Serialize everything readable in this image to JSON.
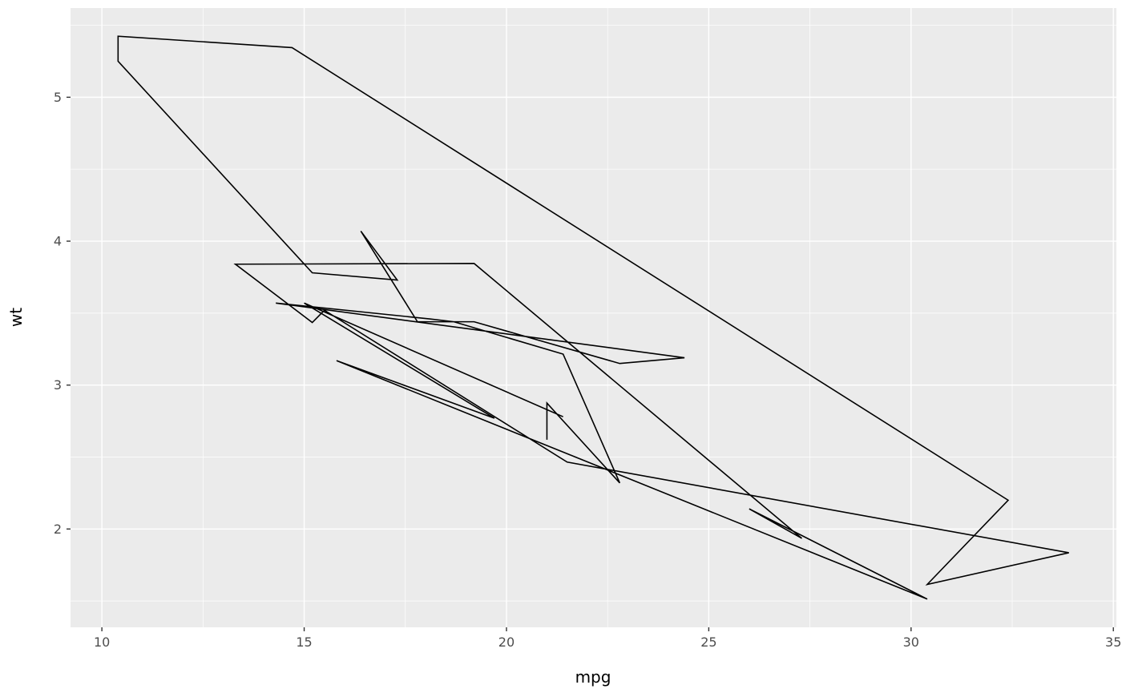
{
  "chart_data": {
    "type": "line",
    "title": "",
    "xlabel": "mpg",
    "ylabel": "wt",
    "x": [
      21.0,
      21.0,
      22.8,
      21.4,
      18.7,
      18.1,
      14.3,
      24.4,
      22.8,
      19.2,
      17.8,
      16.4,
      17.3,
      15.2,
      10.4,
      10.4,
      14.7,
      32.4,
      30.4,
      33.9,
      21.5,
      15.5,
      15.2,
      13.3,
      19.2,
      27.3,
      26.0,
      30.4,
      15.8,
      19.7,
      15.0,
      21.4
    ],
    "y": [
      2.62,
      2.875,
      2.32,
      3.215,
      3.44,
      3.46,
      3.57,
      3.19,
      3.15,
      3.44,
      3.44,
      4.07,
      3.73,
      3.78,
      5.25,
      5.424,
      5.345,
      2.2,
      1.615,
      1.835,
      2.465,
      3.52,
      3.435,
      3.84,
      3.845,
      1.935,
      2.14,
      1.513,
      3.17,
      2.77,
      3.57,
      2.78
    ],
    "xlim": [
      9.225,
      35.075
    ],
    "ylim": [
      1.317,
      5.62
    ],
    "x_major_ticks": [
      10,
      15,
      20,
      25,
      30,
      35
    ],
    "x_major_tick_labels": [
      "10",
      "15",
      "20",
      "25",
      "30",
      "35"
    ],
    "y_major_ticks": [
      2,
      3,
      4,
      5
    ],
    "y_major_tick_labels": [
      "2",
      "3",
      "4",
      "5"
    ],
    "x_minor_ticks": [
      12.5,
      17.5,
      22.5,
      27.5,
      32.5
    ],
    "y_minor_ticks": [
      1.5,
      2.5,
      3.5,
      4.5,
      5.5
    ],
    "grid": true,
    "legend_position": "none",
    "colors": {
      "outer_bg": "#FFFFFF",
      "panel_bg": "#EBEBEB",
      "grid_major": "#FFFFFF",
      "grid_minor": "#FFFFFF",
      "line": "#000000",
      "tick_mark": "#333333",
      "tick_label": "#4D4D4D",
      "axis_title": "#000000"
    }
  }
}
